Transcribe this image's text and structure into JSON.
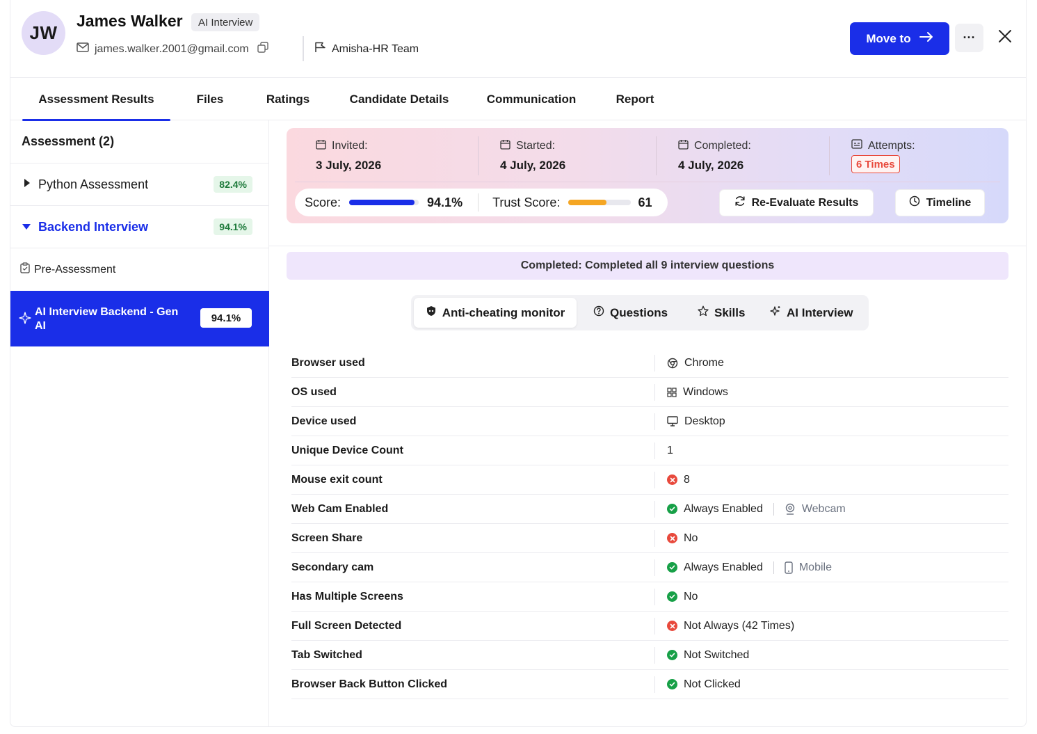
{
  "candidate": {
    "initials": "JW",
    "name": "James Walker",
    "tag": "AI Interview",
    "email": "james.walker.2001@gmail.com",
    "team": "Amisha-HR Team"
  },
  "header_actions": {
    "move_label": "Move to",
    "more_label": "···"
  },
  "tabs": [
    {
      "label": "Assessment Results",
      "active": true
    },
    {
      "label": "Files"
    },
    {
      "label": "Ratings"
    },
    {
      "label": "Candidate Details"
    },
    {
      "label": "Communication"
    },
    {
      "label": "Report"
    }
  ],
  "sidebar": {
    "heading": "Assessment (2)",
    "items": [
      {
        "label": "Python Assessment",
        "score": "82.4%"
      },
      {
        "label": "Backend Interview",
        "score": "94.1%"
      }
    ],
    "sub_items": [
      {
        "label": "Pre-Assessment"
      },
      {
        "label": "AI Interview Backend - Gen AI",
        "score": "94.1%"
      }
    ]
  },
  "summary": {
    "invited_label": "Invited:",
    "invited_value": "3 July, 2026",
    "started_label": "Started:",
    "started_value": "4 July, 2026",
    "completed_label": "Completed:",
    "completed_value": "4 July, 2026",
    "attempts_label": "Attempts:",
    "attempts_value": "6 Times",
    "score_label": "Score:",
    "score_value": "94.1%",
    "score_fraction": 0.941,
    "trust_label": "Trust Score:",
    "trust_value": "61",
    "trust_fraction": 0.61,
    "reevaluate_label": "Re-Evaluate Results",
    "timeline_label": "Timeline"
  },
  "banner": "Completed: Completed all 9 interview questions",
  "segments": [
    {
      "label": "Anti-cheating monitor",
      "active": true
    },
    {
      "label": "Questions"
    },
    {
      "label": "Skills"
    },
    {
      "label": "AI Interview"
    }
  ],
  "monitor": [
    {
      "key": "Browser used",
      "value": "Chrome",
      "icon": "chrome-icon"
    },
    {
      "key": "OS used",
      "value": "Windows",
      "icon": "windows-icon"
    },
    {
      "key": "Device used",
      "value": "Desktop",
      "icon": "desktop-icon"
    },
    {
      "key": "Unique Device Count",
      "value": "1"
    },
    {
      "key": "Mouse exit count",
      "value": "8",
      "status": "bad"
    },
    {
      "key": "Web Cam Enabled",
      "value": "Always Enabled",
      "status": "ok",
      "extra": "Webcam",
      "extra_icon": "webcam-icon"
    },
    {
      "key": "Screen Share",
      "value": "No",
      "status": "bad"
    },
    {
      "key": "Secondary cam",
      "value": "Always Enabled",
      "status": "ok",
      "extra": "Mobile",
      "extra_icon": "mobile-icon"
    },
    {
      "key": "Has Multiple Screens",
      "value": "No",
      "status": "ok"
    },
    {
      "key": "Full Screen Detected",
      "value": "Not Always (42 Times)",
      "status": "bad"
    },
    {
      "key": "Tab Switched",
      "value": "Not Switched",
      "status": "ok"
    },
    {
      "key": "Browser Back Button Clicked",
      "value": "Not Clicked",
      "status": "ok"
    }
  ],
  "colors": {
    "primary": "#1a2ee8",
    "success": "#17a047",
    "danger": "#e8493c",
    "trust_bar": "#f5a623"
  }
}
